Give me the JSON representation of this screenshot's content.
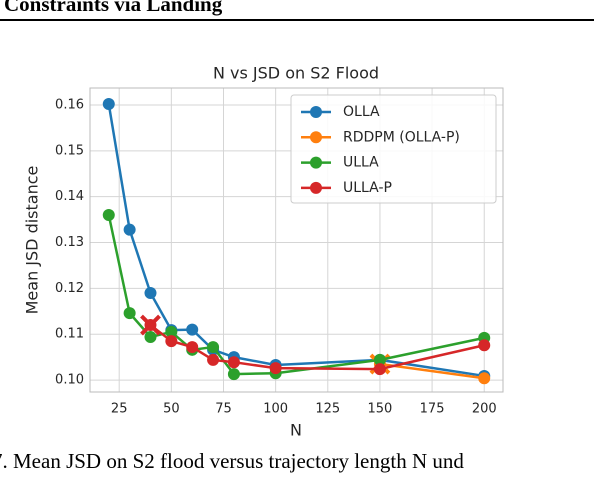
{
  "header": "Constraints via Landing",
  "chart_data": {
    "type": "line",
    "title": "N vs JSD on S2 Flood",
    "x_label": "N",
    "y_label": "Mean JSD distance",
    "x": [
      20,
      30,
      40,
      50,
      60,
      70,
      80,
      100,
      150,
      200
    ],
    "series": [
      {
        "name": "OLLA",
        "color": "#1f77b4",
        "values": [
          0.1602,
          0.1328,
          0.119,
          0.1109,
          0.111,
          0.1066,
          0.105,
          0.1033,
          0.1044,
          0.1009
        ]
      },
      {
        "name": "RDDPM (OLLA-P)",
        "color": "#ff7f0e",
        "values": [
          null,
          null,
          null,
          null,
          null,
          null,
          null,
          null,
          0.1035,
          0.1004
        ],
        "cross_at": [
          8
        ]
      },
      {
        "name": "ULLA",
        "color": "#2ca02c",
        "values": [
          0.136,
          0.1146,
          0.1094,
          0.1105,
          0.1066,
          0.1072,
          0.1013,
          0.1015,
          0.1044,
          0.1092
        ]
      },
      {
        "name": "ULLA-P",
        "color": "#d62728",
        "values": [
          null,
          null,
          0.112,
          0.1085,
          0.1072,
          0.1044,
          0.1039,
          0.1026,
          0.1024,
          0.1076
        ],
        "cross_at": [
          2
        ]
      }
    ],
    "xlim": [
      11,
      209
    ],
    "ylim": [
      0.0974,
      0.1637
    ],
    "xticks": [
      25,
      50,
      75,
      100,
      125,
      150,
      175,
      200
    ],
    "yticks": [
      {
        "value": 0.1,
        "label": "0.10"
      },
      0.11,
      0.12,
      0.13,
      0.14,
      0.15,
      0.16
    ],
    "grid": true,
    "legend": "upper right"
  },
  "caption": "7. Mean JSD on S2 flood versus trajectory length N und"
}
